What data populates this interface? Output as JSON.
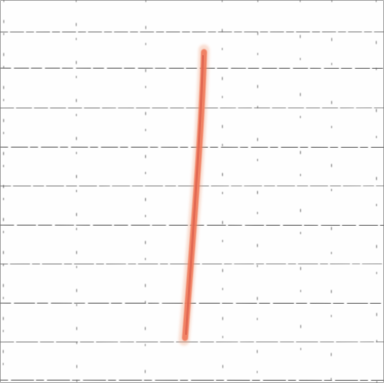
{
  "scene": {
    "background": "#fefefe",
    "grid_color": "#3a3a3a",
    "stroke_color": "#f07a5a",
    "stroke_highlight": "#f2a07a",
    "stroke_shadow": "#d85a4a",
    "description_icon": "pen-stroke-icon"
  }
}
